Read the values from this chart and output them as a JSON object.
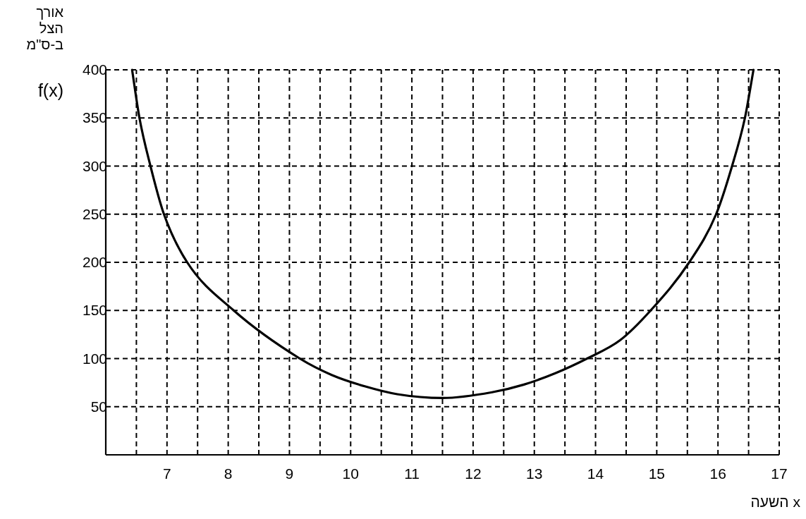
{
  "chart_data": {
    "type": "line",
    "ylabel": "אורך הצל ב-ס\"מ",
    "xlabel": "השעה x",
    "annotations": [
      "f(x)"
    ],
    "x": [
      6.43,
      6.55,
      6.73,
      6.95,
      7.33,
      8.09,
      9.17,
      9.69,
      10.24,
      10.76,
      11.5,
      12.31,
      12.83,
      13.35,
      13.86,
      14.4,
      14.9,
      15.53,
      15.97,
      16.23,
      16.44,
      16.58
    ],
    "values": [
      400,
      350,
      300,
      250,
      200,
      150,
      100,
      83,
      71,
      63,
      59,
      65,
      73,
      85,
      100,
      119,
      150,
      200,
      250,
      300,
      350,
      400
    ],
    "color": "#000000",
    "xlim": [
      6,
      17
    ],
    "ylim": [
      0,
      400
    ],
    "xticks": [
      {
        "value": 6.5,
        "label": null
      },
      7,
      {
        "value": 7.5,
        "label": null
      },
      8,
      {
        "value": 8.5,
        "label": null
      },
      9,
      {
        "value": 9.5,
        "label": null
      },
      10,
      {
        "value": 10.5,
        "label": null
      },
      11,
      {
        "value": 11.5,
        "label": null
      },
      12,
      {
        "value": 12.5,
        "label": null
      },
      13,
      {
        "value": 13.5,
        "label": null
      },
      14,
      {
        "value": 14.5,
        "label": null
      },
      15,
      {
        "value": 15.5,
        "label": null
      },
      16,
      {
        "value": 16.5,
        "label": null
      },
      17
    ],
    "yticks": [
      50,
      100,
      150,
      200,
      250,
      300,
      350,
      400
    ],
    "grid": true,
    "line_style": "solid"
  }
}
